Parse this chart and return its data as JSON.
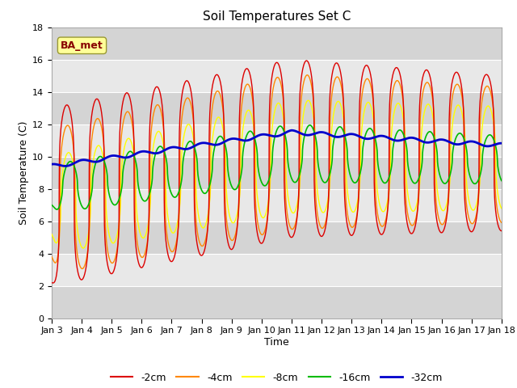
{
  "title": "Soil Temperatures Set C",
  "xlabel": "Time",
  "ylabel": "Soil Temperature (C)",
  "annotation": "BA_met",
  "ylim": [
    0,
    18
  ],
  "xlim": [
    0,
    360
  ],
  "legend": [
    "-2cm",
    "-4cm",
    "-8cm",
    "-16cm",
    "-32cm"
  ],
  "legend_colors": [
    "#dd0000",
    "#ff8800",
    "#ffff00",
    "#00bb00",
    "#0000cc"
  ],
  "xtick_labels": [
    "Jan 3",
    "Jan 4",
    "Jan 5",
    "Jan 6",
    "Jan 7",
    "Jan 8",
    "Jan 9",
    "Jan 10",
    "Jan 11",
    "Jan 12",
    "Jan 13",
    "Jan 14",
    "Jan 15",
    "Jan 16",
    "Jan 17",
    "Jan 18"
  ],
  "xtick_positions": [
    0,
    24,
    48,
    72,
    96,
    120,
    144,
    168,
    192,
    216,
    240,
    264,
    288,
    312,
    336,
    360
  ],
  "ytick_positions": [
    0,
    2,
    4,
    6,
    8,
    10,
    12,
    14,
    16,
    18
  ],
  "band_colors": [
    "#d8d8d8",
    "#e8e8e8"
  ],
  "annotation_facecolor": "#ffff99",
  "annotation_edgecolor": "#999933",
  "annotation_textcolor": "#880000"
}
